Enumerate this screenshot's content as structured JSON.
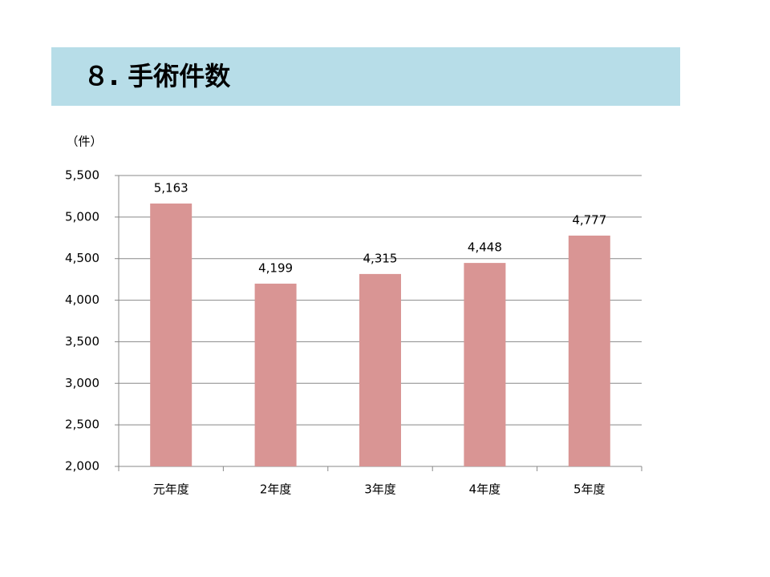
{
  "header": {
    "title": "８. 手術件数"
  },
  "chart_data": {
    "type": "bar",
    "y_unit_label": "（件）",
    "categories": [
      "元年度",
      "2年度",
      "3年度",
      "4年度",
      "5年度"
    ],
    "values": [
      5163,
      4199,
      4315,
      4448,
      4777
    ],
    "value_labels": [
      "5,163",
      "4,199",
      "4,315",
      "4,448",
      "4,777"
    ],
    "color": "#d99594",
    "ylim": [
      2000,
      5500
    ],
    "yticks": [
      {
        "value": 2000,
        "label": "2,000"
      },
      {
        "value": 2500,
        "label": "2,500"
      },
      {
        "value": 3000,
        "label": "3,000"
      },
      {
        "value": 3500,
        "label": "3,500"
      },
      {
        "value": 4000,
        "label": "4,000"
      },
      {
        "value": 4500,
        "label": "4,500"
      },
      {
        "value": 5000,
        "label": "5,000"
      },
      {
        "value": 5500,
        "label": "5,500"
      }
    ],
    "grid": true
  }
}
